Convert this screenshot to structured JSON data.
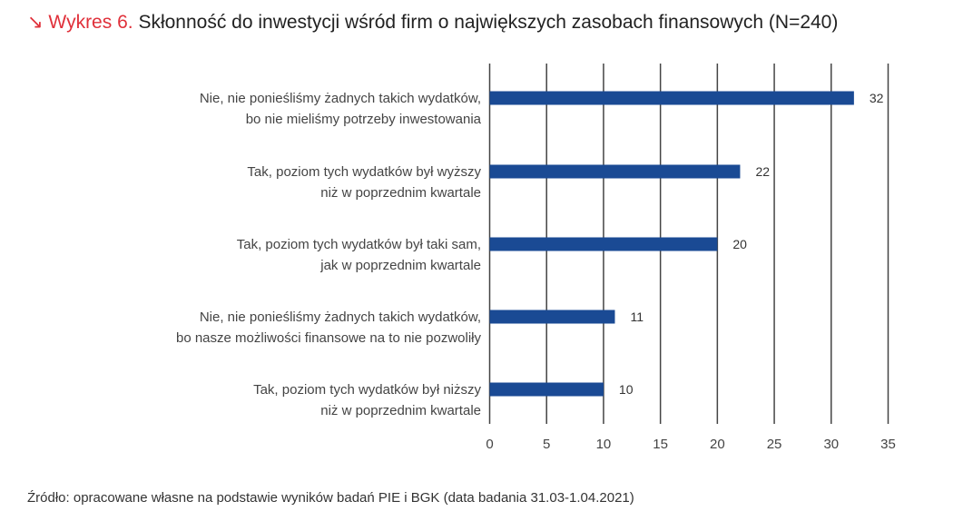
{
  "chart_data": {
    "type": "bar",
    "orientation": "horizontal",
    "title_prefix": "↘ Wykres 6.",
    "title": "Skłonność do inwestycji wśród firm o największych zasobach finansowych (N=240)",
    "categories": [
      [
        "Nie, nie ponieśliśmy żadnych takich wydatków,",
        "bo nie mieliśmy potrzeby inwestowania"
      ],
      [
        "Tak, poziom tych wydatków był wyższy",
        "niż w poprzednim kwartale"
      ],
      [
        "Tak, poziom tych wydatków był taki sam,",
        "jak w poprzednim kwartale"
      ],
      [
        "Nie, nie ponieśliśmy żadnych takich wydatków,",
        "bo nasze możliwości finansowe na to nie pozwoliły"
      ],
      [
        "Tak, poziom tych wydatków był niższy",
        "niż w poprzednim kwartale"
      ]
    ],
    "values": [
      32,
      22,
      20,
      11,
      10
    ],
    "xlim": [
      0,
      35
    ],
    "xticks": [
      0,
      5,
      10,
      15,
      20,
      25,
      30,
      35
    ],
    "grid": true,
    "bar_color": "#1a4a94",
    "accent_color": "#e0303a",
    "source": "Źródło: opracowane własne na podstawie wyników badań PIE i BGK (data badania 31.03-1.04.2021)"
  }
}
